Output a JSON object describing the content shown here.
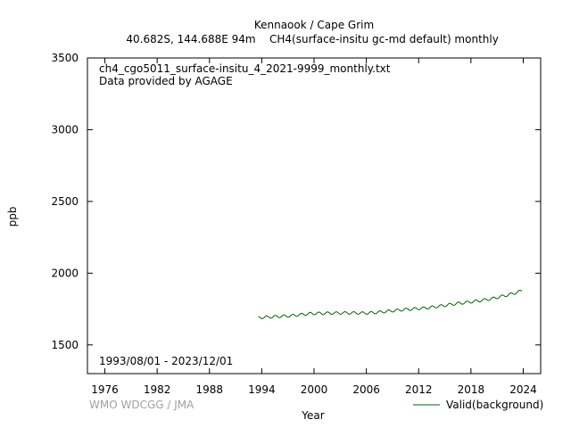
{
  "chart_data": {
    "type": "line",
    "title": "Kennaook / Cape Grim",
    "subtitle_location": "40.682S, 144.688E 94m",
    "subtitle_parameter": "CH4(surface-insitu gc-md default) monthly",
    "filename": "ch4_cgo5011_surface-insitu_4_2021-9999_monthly.txt",
    "provider": "Data provided by AGAGE",
    "date_range": "1993/08/01 - 2023/12/01",
    "credit": "WMO WDCGG / JMA",
    "xlabel": "Year",
    "ylabel": "ppb",
    "xlim": [
      1974,
      2026
    ],
    "ylim": [
      1300,
      3500
    ],
    "xticks": [
      "1976",
      "1982",
      "1988",
      "1994",
      "2000",
      "2006",
      "2012",
      "2018",
      "2024"
    ],
    "yticks": [
      "1500",
      "2000",
      "2500",
      "3000",
      "3500"
    ],
    "series": [
      {
        "name": "Valid(background)",
        "color": "#006400",
        "annual": {
          "years": [
            1993.6,
            1994.5,
            1995.5,
            1996.5,
            1997.5,
            1998.5,
            1999.5,
            2000.5,
            2001.5,
            2002.5,
            2003.5,
            2004.5,
            2005.5,
            2006.5,
            2007.5,
            2008.5,
            2009.5,
            2010.5,
            2011.5,
            2012.5,
            2013.5,
            2014.5,
            2015.5,
            2016.5,
            2017.5,
            2018.5,
            2019.5,
            2020.5,
            2021.5,
            2022.5,
            2023.9
          ],
          "values": [
            1690,
            1693,
            1697,
            1700,
            1704,
            1711,
            1718,
            1720,
            1721,
            1722,
            1723,
            1723,
            1722,
            1723,
            1728,
            1735,
            1741,
            1747,
            1751,
            1756,
            1762,
            1771,
            1780,
            1789,
            1796,
            1804,
            1813,
            1823,
            1838,
            1852,
            1878
          ]
        },
        "seasonal_amplitude": 9
      }
    ],
    "grid": false,
    "legend_position": "bottom-right"
  }
}
